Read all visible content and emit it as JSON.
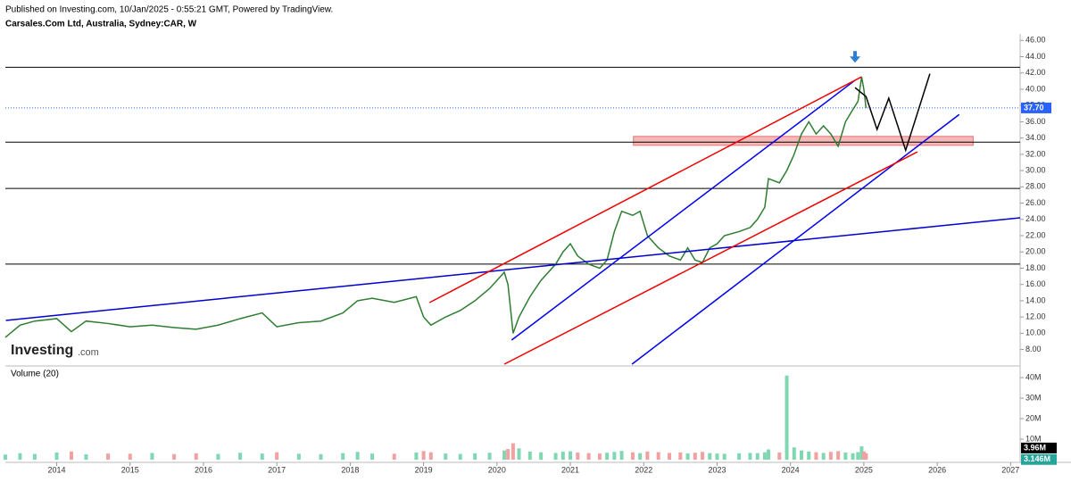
{
  "header": {
    "published": "Published on Investing.com, 10/Jan/2025 - 0:55:21 GMT, Powered by TradingView.",
    "symbol": "Carsales.Com Ltd, Australia, Sydney:CAR, W"
  },
  "watermark": {
    "name": "Investing",
    "suffix": ".com"
  },
  "chart_data": {
    "type": "line",
    "color": "#2e7d32",
    "x": [
      2013.3,
      2013.5,
      2013.7,
      2014.0,
      2014.2,
      2014.4,
      2014.7,
      2015.0,
      2015.3,
      2015.6,
      2015.9,
      2016.2,
      2016.5,
      2016.8,
      2017.0,
      2017.3,
      2017.6,
      2017.9,
      2018.1,
      2018.3,
      2018.6,
      2018.9,
      2019.0,
      2019.1,
      2019.3,
      2019.5,
      2019.7,
      2019.9,
      2020.1,
      2020.15,
      2020.22,
      2020.3,
      2020.45,
      2020.6,
      2020.8,
      2020.9,
      2021.0,
      2021.1,
      2021.25,
      2021.4,
      2021.5,
      2021.6,
      2021.7,
      2021.85,
      2021.95,
      2022.05,
      2022.2,
      2022.35,
      2022.5,
      2022.6,
      2022.7,
      2022.8,
      2022.9,
      2023.0,
      2023.1,
      2023.3,
      2023.45,
      2023.55,
      2023.65,
      2023.7,
      2023.85,
      2023.95,
      2024.05,
      2024.15,
      2024.25,
      2024.35,
      2024.45,
      2024.55,
      2024.65,
      2024.75,
      2024.85,
      2024.92,
      2024.97,
      2025.0,
      2025.03
    ],
    "values": [
      9.5,
      11.0,
      11.5,
      11.8,
      10.2,
      11.5,
      11.2,
      10.8,
      11.0,
      10.7,
      10.5,
      11.0,
      11.8,
      12.5,
      10.8,
      11.3,
      11.5,
      12.5,
      14.0,
      14.3,
      13.8,
      14.5,
      12.0,
      11.0,
      12.0,
      12.8,
      14.0,
      15.5,
      17.5,
      16.0,
      10.0,
      12.0,
      14.5,
      16.5,
      18.5,
      20.0,
      21.0,
      19.5,
      18.5,
      18.0,
      19.0,
      22.5,
      25.0,
      24.5,
      25.0,
      22.0,
      20.5,
      19.5,
      19.0,
      20.5,
      19.0,
      18.7,
      20.5,
      21.0,
      22.0,
      22.5,
      23.0,
      24.0,
      25.5,
      29.0,
      28.5,
      30.0,
      32.0,
      34.5,
      36.0,
      34.5,
      35.5,
      34.5,
      33.0,
      36.0,
      37.5,
      38.5,
      41.5,
      40.0,
      37.7
    ],
    "volume": {
      "title": "Volume (20)",
      "values": [
        2500000,
        3200000,
        2800000,
        3500000,
        4000000,
        2600000,
        3000000,
        2900000,
        3300000,
        2700000,
        3100000,
        2800000,
        3400000,
        3000000,
        3600000,
        2900000,
        2700000,
        3200000,
        3800000,
        3000000,
        2900000,
        3500000,
        4200000,
        3600000,
        3000000,
        2800000,
        3100000,
        3400000,
        4500000,
        5200000,
        8000000,
        5500000,
        4000000,
        3600000,
        3300000,
        3900000,
        4100000,
        3500000,
        3200000,
        3000000,
        3400000,
        3800000,
        4300000,
        3600000,
        3200000,
        4000000,
        3700000,
        3300000,
        3500000,
        3100000,
        3400000,
        3800000,
        3200000,
        3000000,
        2900000,
        3100000,
        3300000,
        3200000,
        3600000,
        5000000,
        3500000,
        41000000,
        6000000,
        4500000,
        4000000,
        3600000,
        3300000,
        3800000,
        4200000,
        3500000,
        3200000,
        3700000,
        6500000,
        4000000,
        3146000
      ],
      "ylim": [
        0,
        43500000
      ],
      "yticks": [
        {
          "value": 10000000,
          "label": "10M"
        },
        {
          "value": 20000000,
          "label": "20M"
        },
        {
          "value": 30000000,
          "label": "30M"
        },
        {
          "value": 40000000,
          "label": "40M"
        }
      ],
      "ma_label": {
        "value": 3960000,
        "label": "3.96M"
      },
      "last_label": {
        "value": 3146000,
        "label": "3.146M"
      },
      "up_color": "#7fd8b2",
      "down_color": "#f3a0a0"
    },
    "xlim": [
      2013.3,
      2027.13
    ],
    "xticks": [
      2014,
      2015,
      2016,
      2017,
      2018,
      2019,
      2020,
      2021,
      2022,
      2023,
      2024,
      2025,
      2026,
      2027
    ],
    "ylim": [
      6.2,
      46.8
    ],
    "yticks": [
      {
        "value": 8,
        "label": "8.00"
      },
      {
        "value": 10,
        "label": "10.00"
      },
      {
        "value": 12,
        "label": "12.00"
      },
      {
        "value": 14,
        "label": "14.00"
      },
      {
        "value": 16,
        "label": "16.00"
      },
      {
        "value": 18,
        "label": "18.00"
      },
      {
        "value": 20,
        "label": "20.00"
      },
      {
        "value": 22,
        "label": "22.00"
      },
      {
        "value": 24,
        "label": "24.00"
      },
      {
        "value": 26,
        "label": "26.00"
      },
      {
        "value": 28,
        "label": "28.00"
      },
      {
        "value": 30,
        "label": "30.00"
      },
      {
        "value": 32,
        "label": "32.00"
      },
      {
        "value": 34,
        "label": "34.00"
      },
      {
        "value": 36,
        "label": "36.00"
      },
      {
        "value": 38,
        "label": "38.00"
      },
      {
        "value": 40,
        "label": "40.00"
      },
      {
        "value": 42,
        "label": "42.00"
      },
      {
        "value": 44,
        "label": "44.00"
      },
      {
        "value": 46,
        "label": "46.00"
      }
    ],
    "last_price": {
      "value": 37.7,
      "label": "37.70",
      "color": "#2962ff"
    },
    "levels": [
      {
        "value": 42.7,
        "color": "#000000"
      },
      {
        "value": 33.5,
        "color": "#000000"
      },
      {
        "value": 27.8,
        "color": "#000000"
      },
      {
        "value": 18.5,
        "color": "#000000"
      }
    ],
    "trendlines": [
      {
        "color": "#0000cc",
        "x": [
          2013.307,
          2027.13
        ],
        "y": [
          11.58,
          24.2
        ]
      },
      {
        "color": "#0000ee",
        "x": [
          2020.2,
          2024.88
        ],
        "y": [
          9.16,
          41.1
        ]
      },
      {
        "color": "#0000ee",
        "x": [
          2021.84,
          2026.3
        ],
        "y": [
          6.2,
          36.9
        ]
      },
      {
        "color": "#ee0000",
        "x": [
          2019.08,
          2024.97
        ],
        "y": [
          13.77,
          41.53
        ]
      },
      {
        "color": "#ee0000",
        "x": [
          2020.1,
          2025.73
        ],
        "y": [
          6.2,
          32.3
        ]
      },
      {
        "color": "#000000",
        "x": [
          2024.88,
          2025.03,
          2025.18,
          2025.34,
          2025.57,
          2025.9
        ],
        "y": [
          40.2,
          39.1,
          35.06,
          38.9,
          32.5,
          41.9
        ]
      }
    ],
    "zone": {
      "color": "#f4a6a6",
      "x": [
        2021.86,
        2026.49
      ],
      "y": [
        33.1,
        34.2
      ]
    },
    "arrow": {
      "color": "#2f7fd0",
      "x": 2024.88,
      "y": 43.7
    }
  }
}
